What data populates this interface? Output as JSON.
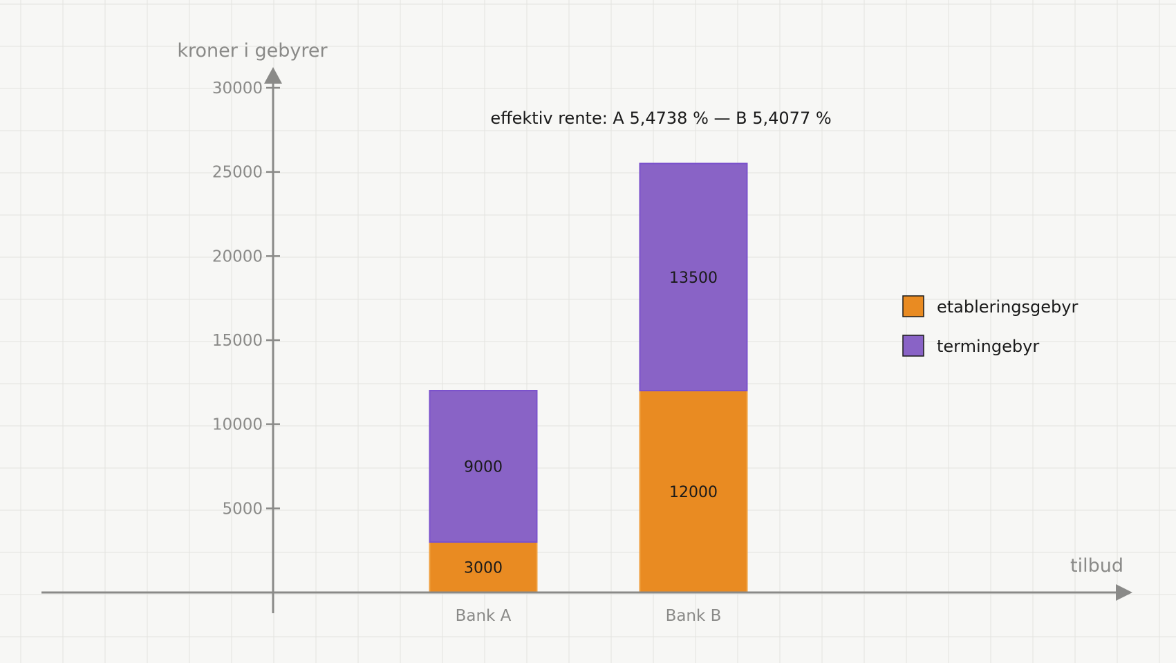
{
  "chart_data": {
    "type": "bar",
    "stacked": true,
    "title": "",
    "annotation": "effektiv rente: A 5,4738 %  —  B 5,4077 %",
    "xlabel": "tilbud",
    "ylabel": "kroner i gebyrer",
    "categories": [
      "Bank A",
      "Bank B"
    ],
    "series": [
      {
        "name": "etableringsgebyr",
        "values": [
          3000,
          12000
        ],
        "color": "#e98b22",
        "stroke": "#f0a040"
      },
      {
        "name": "termingebyr",
        "values": [
          9000,
          13500
        ],
        "color": "#8963c6",
        "stroke": "#7b52cc"
      }
    ],
    "yticks": [
      5000,
      10000,
      15000,
      20000,
      25000,
      30000
    ],
    "ylim": [
      0,
      30000
    ],
    "grid": true,
    "legend_position": "right"
  }
}
